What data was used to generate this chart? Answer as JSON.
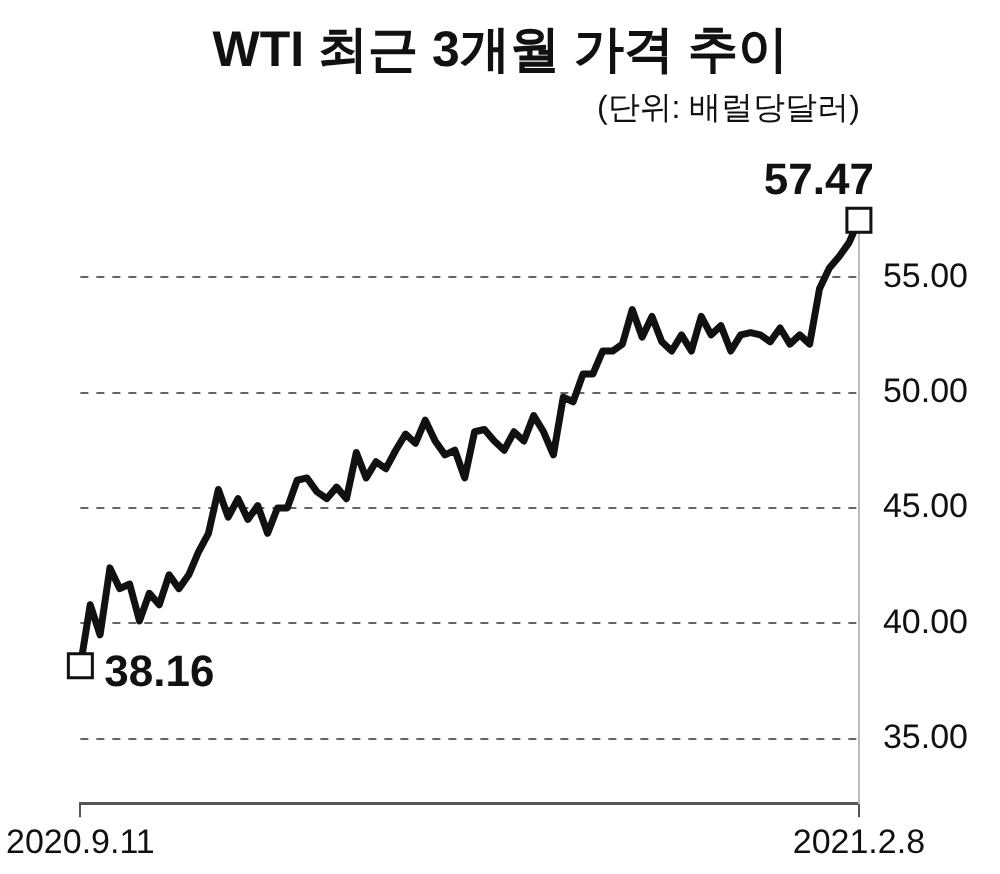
{
  "chart_data": {
    "type": "line",
    "title": "WTI 최근 3개월 가격 추이",
    "subtitle": "(단위: 배럴당달러)",
    "categories": [
      "2020.9.11",
      null,
      null,
      null,
      null,
      null,
      null,
      null,
      null,
      null,
      null,
      null,
      null,
      null,
      null,
      null,
      null,
      null,
      null,
      null,
      null,
      null,
      null,
      null,
      null,
      null,
      null,
      null,
      null,
      null,
      null,
      null,
      null,
      null,
      null,
      null,
      null,
      null,
      null,
      null,
      null,
      null,
      null,
      null,
      null,
      null,
      null,
      null,
      null,
      null,
      null,
      null,
      null,
      null,
      null,
      null,
      null,
      null,
      null,
      null,
      null,
      null,
      null,
      null,
      null,
      null,
      null,
      null,
      null,
      null,
      null,
      null,
      null,
      null,
      null,
      null,
      null,
      null,
      null,
      "2021.2.8"
    ],
    "series": [
      {
        "color": "#111111",
        "values": [
          38.16,
          40.8,
          39.5,
          42.4,
          41.5,
          41.7,
          40.1,
          41.3,
          40.8,
          42.1,
          41.5,
          42.1,
          43.1,
          43.9,
          45.8,
          44.6,
          45.4,
          44.5,
          45.1,
          43.9,
          45.0,
          45.0,
          46.2,
          46.3,
          45.7,
          45.4,
          45.9,
          45.4,
          47.4,
          46.3,
          47.0,
          46.7,
          47.5,
          48.2,
          47.8,
          48.8,
          47.9,
          47.3,
          47.5,
          46.3,
          48.3,
          48.4,
          47.9,
          47.5,
          48.3,
          47.9,
          49.0,
          48.3,
          47.3,
          49.8,
          49.6,
          50.8,
          50.8,
          51.8,
          51.8,
          52.1,
          53.6,
          52.4,
          53.3,
          52.2,
          51.8,
          52.5,
          51.8,
          53.3,
          52.5,
          52.9,
          51.8,
          52.5,
          52.6,
          52.5,
          52.2,
          52.8,
          52.1,
          52.5,
          52.1,
          54.5,
          55.4,
          55.9,
          56.5,
          57.47
        ],
        "value_labels": [
          "38.16",
          null,
          null,
          null,
          null,
          null,
          null,
          null,
          null,
          null,
          null,
          null,
          null,
          null,
          null,
          null,
          null,
          null,
          null,
          null,
          null,
          null,
          null,
          null,
          null,
          null,
          null,
          null,
          null,
          null,
          null,
          null,
          null,
          null,
          null,
          null,
          null,
          null,
          null,
          null,
          null,
          null,
          null,
          null,
          null,
          null,
          null,
          null,
          null,
          null,
          null,
          null,
          null,
          null,
          null,
          null,
          null,
          null,
          null,
          null,
          null,
          null,
          null,
          null,
          null,
          null,
          null,
          null,
          null,
          null,
          null,
          null,
          null,
          null,
          null,
          null,
          null,
          null,
          null,
          "57.47"
        ]
      }
    ],
    "ylim": [
      32.2,
      58
    ],
    "yticks": [
      {
        "value": 35,
        "label": "35.00"
      },
      {
        "value": 40,
        "label": "40.00"
      },
      {
        "value": 45,
        "label": "45.00"
      },
      {
        "value": 50,
        "label": "50.00"
      },
      {
        "value": 55,
        "label": "55.00"
      }
    ],
    "grid": "y",
    "line_style": "solid",
    "legend": false
  }
}
